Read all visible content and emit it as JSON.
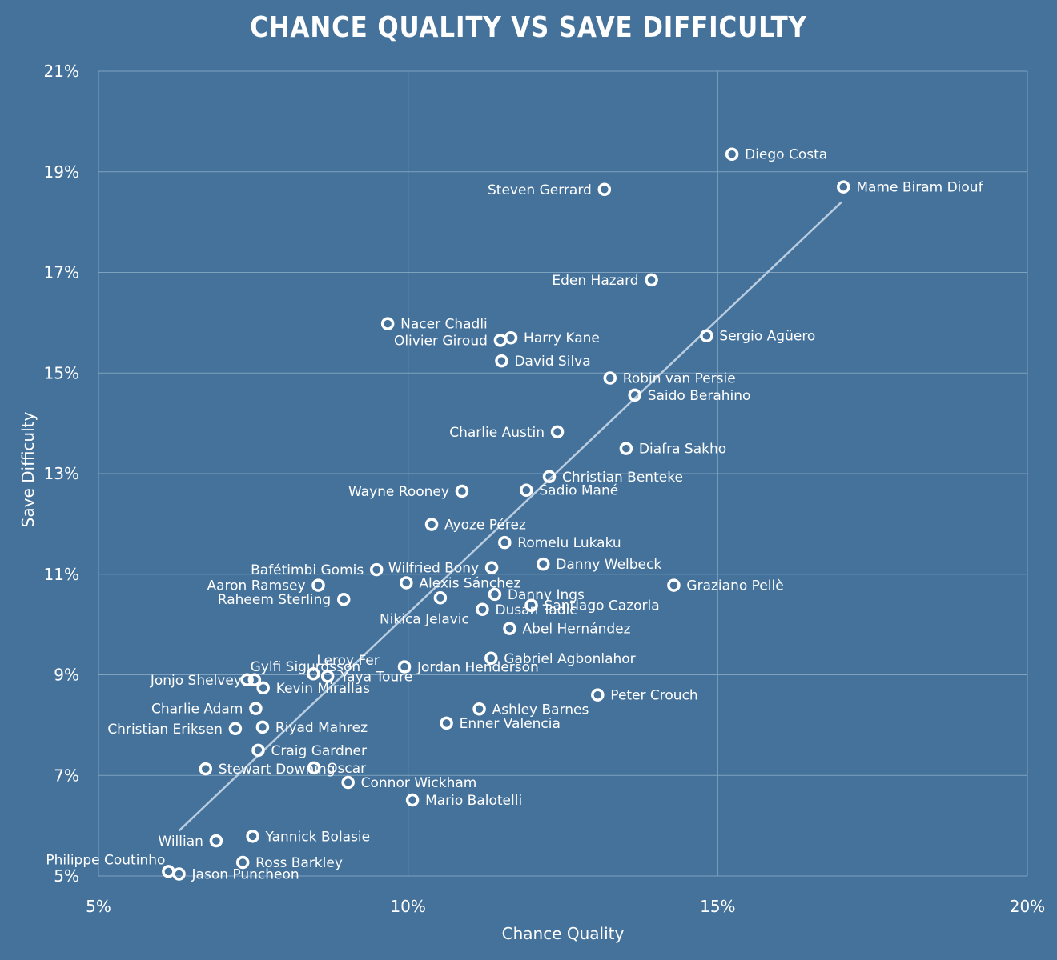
{
  "colors": {
    "background": "#45729b",
    "grid": "#7fa2c0",
    "marker_stroke": "#ffffff",
    "trendline": "#b9cde0",
    "text": "#ffffff"
  },
  "chart_data": {
    "type": "scatter",
    "title": "CHANCE QUALITY VS SAVE DIFFICULTY",
    "xlabel": "Chance Quality",
    "ylabel": "Save Difficulty",
    "xlim": [
      5,
      20
    ],
    "ylim": [
      5,
      21
    ],
    "x_ticks": [
      5,
      10,
      15,
      20
    ],
    "x_tick_labels": [
      "5%",
      "10%",
      "15%",
      "20%"
    ],
    "y_ticks": [
      5,
      7,
      9,
      11,
      13,
      15,
      17,
      19,
      21
    ],
    "y_tick_labels": [
      "5%",
      "7%",
      "9%",
      "11%",
      "13%",
      "15%",
      "17%",
      "19%",
      "21%"
    ],
    "grid": true,
    "trendline": {
      "x": [
        6.3,
        17.0
      ],
      "y": [
        5.9,
        18.4
      ]
    },
    "points": [
      {
        "name": "Diego Costa",
        "x": 15.23,
        "y": 19.35,
        "side": "right"
      },
      {
        "name": "Mame Biram Diouf",
        "x": 17.03,
        "y": 18.7,
        "side": "right"
      },
      {
        "name": "Steven Gerrard",
        "x": 13.17,
        "y": 18.65,
        "side": "left"
      },
      {
        "name": "Eden Hazard",
        "x": 13.93,
        "y": 16.85,
        "side": "left"
      },
      {
        "name": "Nacer Chadli",
        "x": 9.67,
        "y": 15.98,
        "side": "right"
      },
      {
        "name": "Harry Kane",
        "x": 11.66,
        "y": 15.7,
        "side": "right"
      },
      {
        "name": "Olivier Giroud",
        "x": 11.49,
        "y": 15.65,
        "side": "left"
      },
      {
        "name": "Sergio Agüero",
        "x": 14.82,
        "y": 15.74,
        "side": "right"
      },
      {
        "name": "David Silva",
        "x": 11.51,
        "y": 15.24,
        "side": "right"
      },
      {
        "name": "Robin van Persie",
        "x": 13.26,
        "y": 14.9,
        "side": "right"
      },
      {
        "name": "Saido Berahino",
        "x": 13.66,
        "y": 14.56,
        "side": "right"
      },
      {
        "name": "Charlie Austin",
        "x": 12.41,
        "y": 13.83,
        "side": "left"
      },
      {
        "name": "Diafra Sakho",
        "x": 13.52,
        "y": 13.5,
        "side": "right"
      },
      {
        "name": "Christian Benteke",
        "x": 12.28,
        "y": 12.94,
        "side": "right"
      },
      {
        "name": "Wayne Rooney",
        "x": 10.87,
        "y": 12.65,
        "side": "left"
      },
      {
        "name": "Sadio Mané",
        "x": 11.91,
        "y": 12.67,
        "side": "right"
      },
      {
        "name": "Ayoze Pérez",
        "x": 10.38,
        "y": 11.99,
        "side": "right"
      },
      {
        "name": "Romelu Lukaku",
        "x": 11.56,
        "y": 11.63,
        "side": "right"
      },
      {
        "name": "Wilfried Bony",
        "x": 11.35,
        "y": 11.13,
        "side": "left"
      },
      {
        "name": "Danny Welbeck",
        "x": 12.18,
        "y": 11.2,
        "side": "right"
      },
      {
        "name": "Bafétimbi Gomis",
        "x": 9.49,
        "y": 11.09,
        "side": "left"
      },
      {
        "name": "Alexis Sánchez",
        "x": 9.97,
        "y": 10.83,
        "side": "right"
      },
      {
        "name": "Aaron Ramsey",
        "x": 8.55,
        "y": 10.78,
        "side": "left"
      },
      {
        "name": "Graziano Pellè",
        "x": 14.29,
        "y": 10.78,
        "side": "right"
      },
      {
        "name": "Raheem Sterling",
        "x": 8.96,
        "y": 10.5,
        "side": "left"
      },
      {
        "name": "Danny Ings",
        "x": 11.4,
        "y": 10.6,
        "side": "right"
      },
      {
        "name": "Santiago Cazorla",
        "x": 11.99,
        "y": 10.38,
        "side": "right"
      },
      {
        "name": "Dusan Tadic",
        "x": 11.2,
        "y": 10.3,
        "side": "right"
      },
      {
        "name": "Nikica Jelavic",
        "x": 10.52,
        "y": 10.53,
        "side": "below-left"
      },
      {
        "name": "Abel Hernández",
        "x": 11.64,
        "y": 9.92,
        "side": "right"
      },
      {
        "name": "Gabriel Agbonlahor",
        "x": 11.34,
        "y": 9.33,
        "side": "right"
      },
      {
        "name": "Jordan Henderson",
        "x": 9.94,
        "y": 9.16,
        "side": "right"
      },
      {
        "name": "Leroy Fer",
        "x": 8.47,
        "y": 9.02,
        "side": "above-right"
      },
      {
        "name": "Gylfi Sigurdsson",
        "x": 7.4,
        "y": 8.9,
        "side": "above-right"
      },
      {
        "name": "Yaya Touré",
        "x": 8.7,
        "y": 8.97,
        "side": "right"
      },
      {
        "name": "Jonjo Shelvey",
        "x": 7.52,
        "y": 8.9,
        "side": "left"
      },
      {
        "name": "Kevin Mirallas",
        "x": 7.66,
        "y": 8.74,
        "side": "right"
      },
      {
        "name": "Peter Crouch",
        "x": 13.06,
        "y": 8.6,
        "side": "right"
      },
      {
        "name": "Charlie Adam",
        "x": 7.54,
        "y": 8.33,
        "side": "left"
      },
      {
        "name": "Ashley Barnes",
        "x": 11.15,
        "y": 8.32,
        "side": "right"
      },
      {
        "name": "Christian Eriksen",
        "x": 7.21,
        "y": 7.93,
        "side": "left"
      },
      {
        "name": "Riyad Mahrez",
        "x": 7.65,
        "y": 7.96,
        "side": "right"
      },
      {
        "name": "Enner Valencia",
        "x": 10.62,
        "y": 8.04,
        "side": "right"
      },
      {
        "name": "Craig Gardner",
        "x": 7.58,
        "y": 7.5,
        "side": "right"
      },
      {
        "name": "Stewart Downing",
        "x": 6.73,
        "y": 7.13,
        "side": "right"
      },
      {
        "name": "Oscar",
        "x": 8.48,
        "y": 7.15,
        "side": "right"
      },
      {
        "name": "Connor Wickham",
        "x": 9.03,
        "y": 6.86,
        "side": "right"
      },
      {
        "name": "Mario Balotelli",
        "x": 10.07,
        "y": 6.51,
        "side": "right"
      },
      {
        "name": "Yannick Bolasie",
        "x": 7.49,
        "y": 5.79,
        "side": "right"
      },
      {
        "name": "Willian",
        "x": 6.9,
        "y": 5.7,
        "side": "left"
      },
      {
        "name": "Ross Barkley",
        "x": 7.33,
        "y": 5.27,
        "side": "right"
      },
      {
        "name": "Philippe Coutinho",
        "x": 6.13,
        "y": 5.09,
        "side": "above-left"
      },
      {
        "name": "Jason Puncheon",
        "x": 6.3,
        "y": 5.04,
        "side": "right"
      }
    ]
  }
}
